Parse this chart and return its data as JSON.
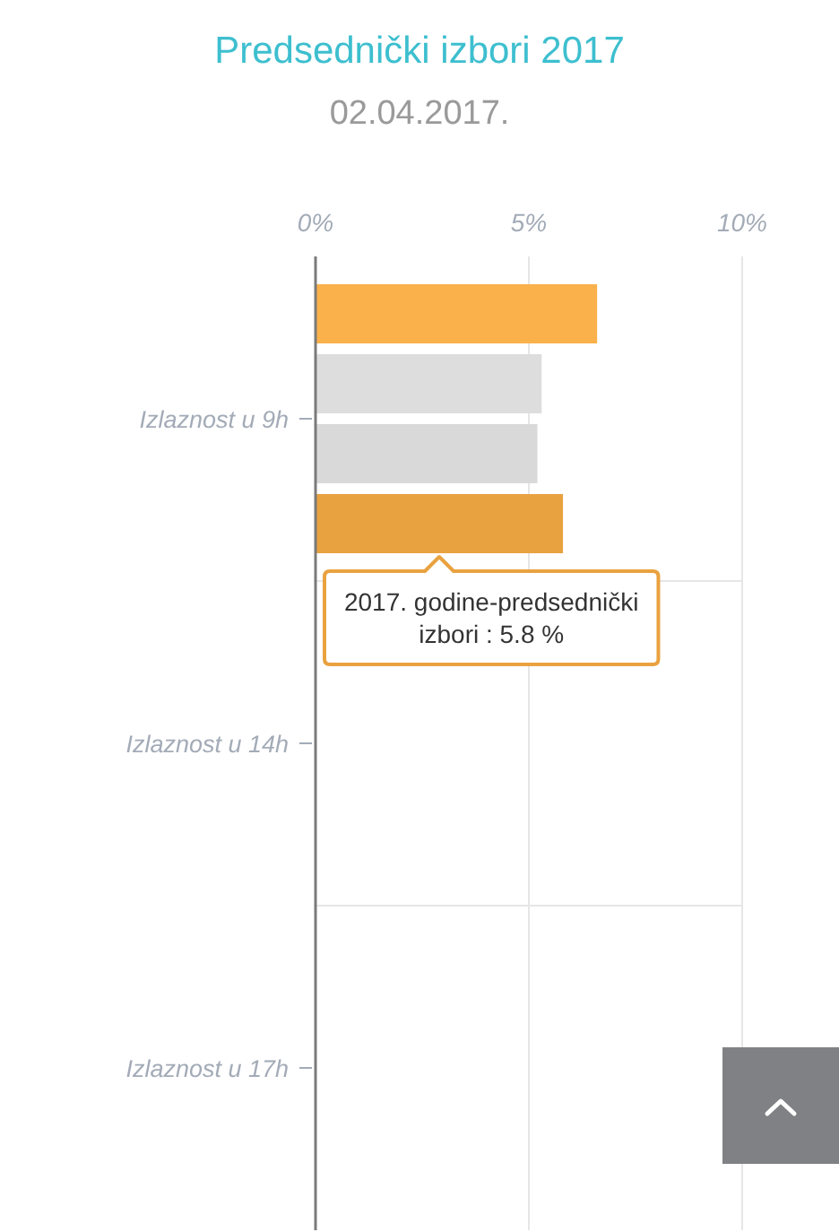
{
  "chart_data": {
    "type": "bar",
    "orientation": "horizontal",
    "title": "Predsednički izbori 2017",
    "subtitle": "02.04.2017.",
    "categories": [
      "Izlaznost u 9h",
      "Izlaznost u 14h",
      "Izlaznost u 17h"
    ],
    "series": [
      {
        "color": "#fbb14b",
        "values": [
          6.6,
          null,
          null
        ]
      },
      {
        "color": "#dddddd",
        "values": [
          5.3,
          null,
          null
        ]
      },
      {
        "color": "#d9d9d9",
        "values": [
          5.2,
          null,
          null
        ]
      },
      {
        "color": "#e9a240",
        "values": [
          5.8,
          null,
          null
        ]
      }
    ],
    "xlim": [
      0,
      10
    ],
    "xticks": [
      {
        "value": 0,
        "label": "0%"
      },
      {
        "value": 5,
        "label": "5%"
      },
      {
        "value": 10,
        "label": "10%"
      }
    ],
    "grid": true,
    "annotations": [
      "2017. godine-predsednički izbori : 5.8 %"
    ]
  }
}
